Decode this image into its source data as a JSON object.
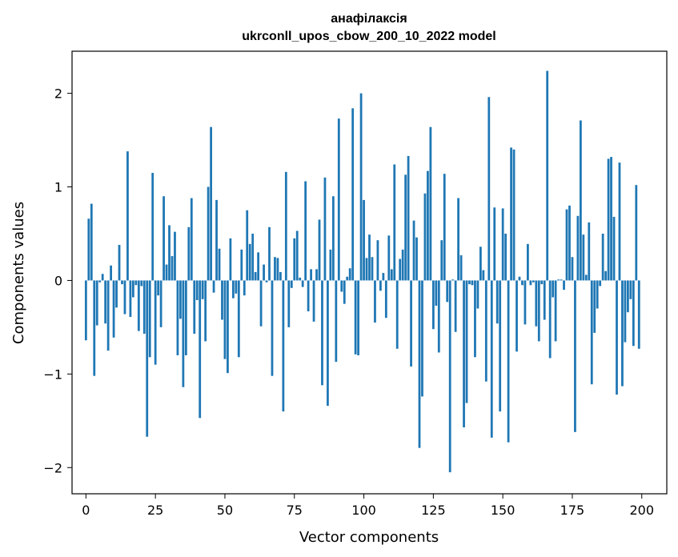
{
  "chart_data": {
    "type": "bar",
    "title": "анафілаксія",
    "subtitle": "ukrconll_upos_cbow_200_10_2022 model",
    "xlabel": "Vector components",
    "ylabel": "Components values",
    "xlim": [
      -5,
      209
    ],
    "ylim": [
      -2.28,
      2.45
    ],
    "xticks": [
      0,
      25,
      50,
      75,
      100,
      125,
      150,
      175,
      200
    ],
    "xtick_labels": [
      "0",
      "25",
      "50",
      "75",
      "100",
      "125",
      "150",
      "175",
      "200"
    ],
    "yticks": [
      -2,
      -1,
      0,
      1,
      2
    ],
    "ytick_labels": [
      "−2",
      "−1",
      "0",
      "1",
      "2"
    ],
    "grid": false,
    "color": "#1f77b4",
    "x": [
      0,
      1,
      2,
      3,
      4,
      5,
      6,
      7,
      8,
      9,
      10,
      11,
      12,
      13,
      14,
      15,
      16,
      17,
      18,
      19,
      20,
      21,
      22,
      23,
      24,
      25,
      26,
      27,
      28,
      29,
      30,
      31,
      32,
      33,
      34,
      35,
      36,
      37,
      38,
      39,
      40,
      41,
      42,
      43,
      44,
      45,
      46,
      47,
      48,
      49,
      50,
      51,
      52,
      53,
      54,
      55,
      56,
      57,
      58,
      59,
      60,
      61,
      62,
      63,
      64,
      65,
      66,
      67,
      68,
      69,
      70,
      71,
      72,
      73,
      74,
      75,
      76,
      77,
      78,
      79,
      80,
      81,
      82,
      83,
      84,
      85,
      86,
      87,
      88,
      89,
      90,
      91,
      92,
      93,
      94,
      95,
      96,
      97,
      98,
      99,
      100,
      101,
      102,
      103,
      104,
      105,
      106,
      107,
      108,
      109,
      110,
      111,
      112,
      113,
      114,
      115,
      116,
      117,
      118,
      119,
      120,
      121,
      122,
      123,
      124,
      125,
      126,
      127,
      128,
      129,
      130,
      131,
      132,
      133,
      134,
      135,
      136,
      137,
      138,
      139,
      140,
      141,
      142,
      143,
      144,
      145,
      146,
      147,
      148,
      149,
      150,
      151,
      152,
      153,
      154,
      155,
      156,
      157,
      158,
      159,
      160,
      161,
      162,
      163,
      164,
      165,
      166,
      167,
      168,
      169,
      170,
      171,
      172,
      173,
      174,
      175,
      176,
      177,
      178,
      179,
      180,
      181,
      182,
      183,
      184,
      185,
      186,
      187,
      188,
      189,
      190,
      191,
      192,
      193,
      194,
      195,
      196,
      197,
      198,
      199
    ],
    "values": [
      -0.64,
      0.66,
      0.82,
      -1.02,
      -0.48,
      -0.02,
      0.07,
      -0.46,
      -0.75,
      0.16,
      -0.61,
      -0.29,
      0.38,
      -0.04,
      -0.36,
      1.38,
      -0.39,
      -0.18,
      -0.05,
      -0.54,
      -0.06,
      -0.57,
      -1.67,
      -0.82,
      1.15,
      -0.9,
      -0.16,
      -0.5,
      0.9,
      0.17,
      0.59,
      0.26,
      0.52,
      -0.8,
      -0.41,
      -1.14,
      -0.8,
      0.57,
      0.88,
      -0.57,
      -0.21,
      -1.47,
      -0.2,
      -0.65,
      1.0,
      1.64,
      -0.13,
      0.86,
      0.34,
      -0.42,
      -0.84,
      -0.99,
      0.45,
      -0.19,
      -0.14,
      -0.82,
      0.33,
      -0.16,
      0.75,
      0.39,
      0.5,
      0.09,
      0.3,
      -0.49,
      0.17,
      -0.02,
      0.57,
      -1.02,
      0.25,
      0.24,
      0.09,
      -1.4,
      1.16,
      -0.5,
      -0.08,
      0.45,
      0.53,
      0.03,
      -0.07,
      1.06,
      -0.33,
      0.12,
      -0.44,
      0.12,
      0.65,
      -1.12,
      1.1,
      -1.34,
      0.33,
      0.9,
      -0.87,
      1.73,
      -0.12,
      -0.25,
      0.04,
      0.13,
      1.84,
      -0.79,
      -0.8,
      2.0,
      0.86,
      0.24,
      0.49,
      0.25,
      -0.45,
      0.43,
      -0.11,
      0.08,
      -0.4,
      0.48,
      0.12,
      1.24,
      -0.73,
      0.23,
      0.33,
      1.13,
      1.33,
      -0.92,
      0.64,
      0.46,
      -1.79,
      -1.24,
      0.93,
      1.17,
      1.64,
      -0.52,
      -0.27,
      -0.77,
      0.43,
      1.14,
      -0.23,
      -2.05,
      0.01,
      -0.55,
      0.88,
      0.27,
      -1.57,
      -1.31,
      -0.04,
      -0.05,
      -0.82,
      -0.3,
      0.36,
      0.11,
      -1.08,
      1.96,
      -1.68,
      0.78,
      -0.46,
      -1.4,
      0.77,
      0.5,
      -1.73,
      1.42,
      1.4,
      -0.76,
      0.04,
      -0.05,
      -0.47,
      0.39,
      -0.05,
      -0.02,
      -0.49,
      -0.65,
      -0.04,
      -0.42,
      2.24,
      -0.83,
      -0.18,
      -0.65,
      0.01,
      0.01,
      -0.1,
      0.76,
      0.8,
      0.25,
      -1.62,
      0.69,
      1.71,
      0.49,
      0.06,
      0.62,
      -1.11,
      -0.56,
      -0.3,
      -0.06,
      0.5,
      0.1,
      1.3,
      1.32,
      0.68,
      -1.22,
      1.26,
      -1.13,
      -0.66,
      -0.34,
      -0.2,
      -0.7,
      1.02,
      -0.73
    ]
  }
}
